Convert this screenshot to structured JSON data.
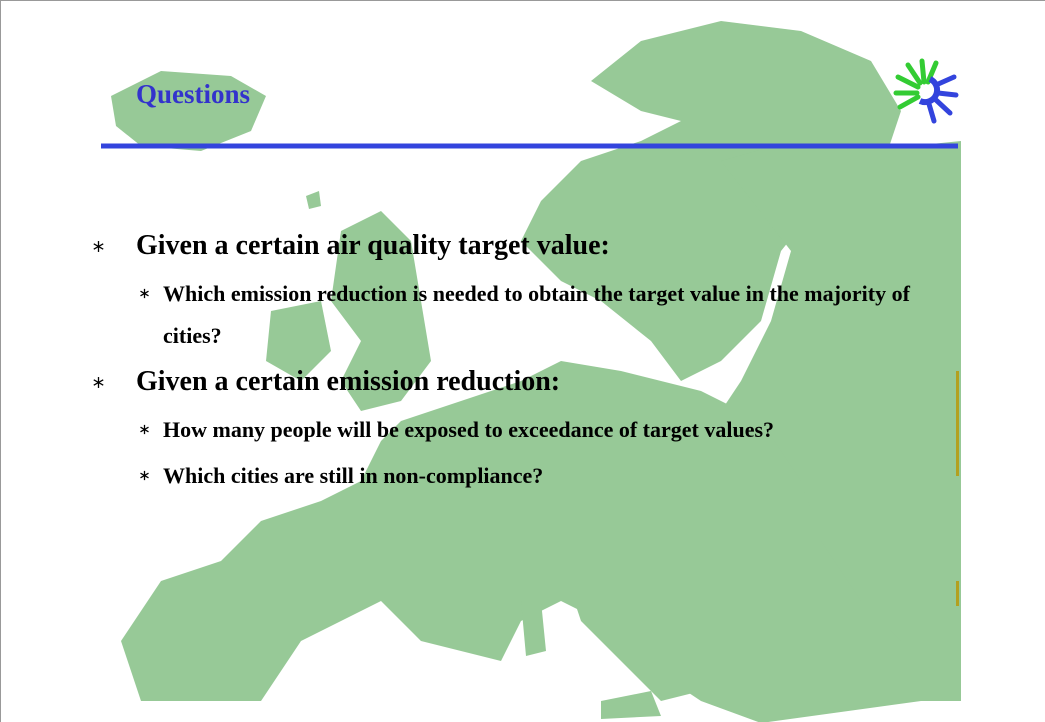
{
  "slide": {
    "title": "Questions",
    "bullets": [
      {
        "text": "Given a certain air quality target value:",
        "items": [
          "Which emission reduction is needed to obtain the target value in the majority of cities?"
        ]
      },
      {
        "text": "Given a certain emission reduction:",
        "items": [
          "How many people will be exposed to exceedance of target values?",
          "Which cities are still in non-compliance?"
        ]
      }
    ]
  }
}
